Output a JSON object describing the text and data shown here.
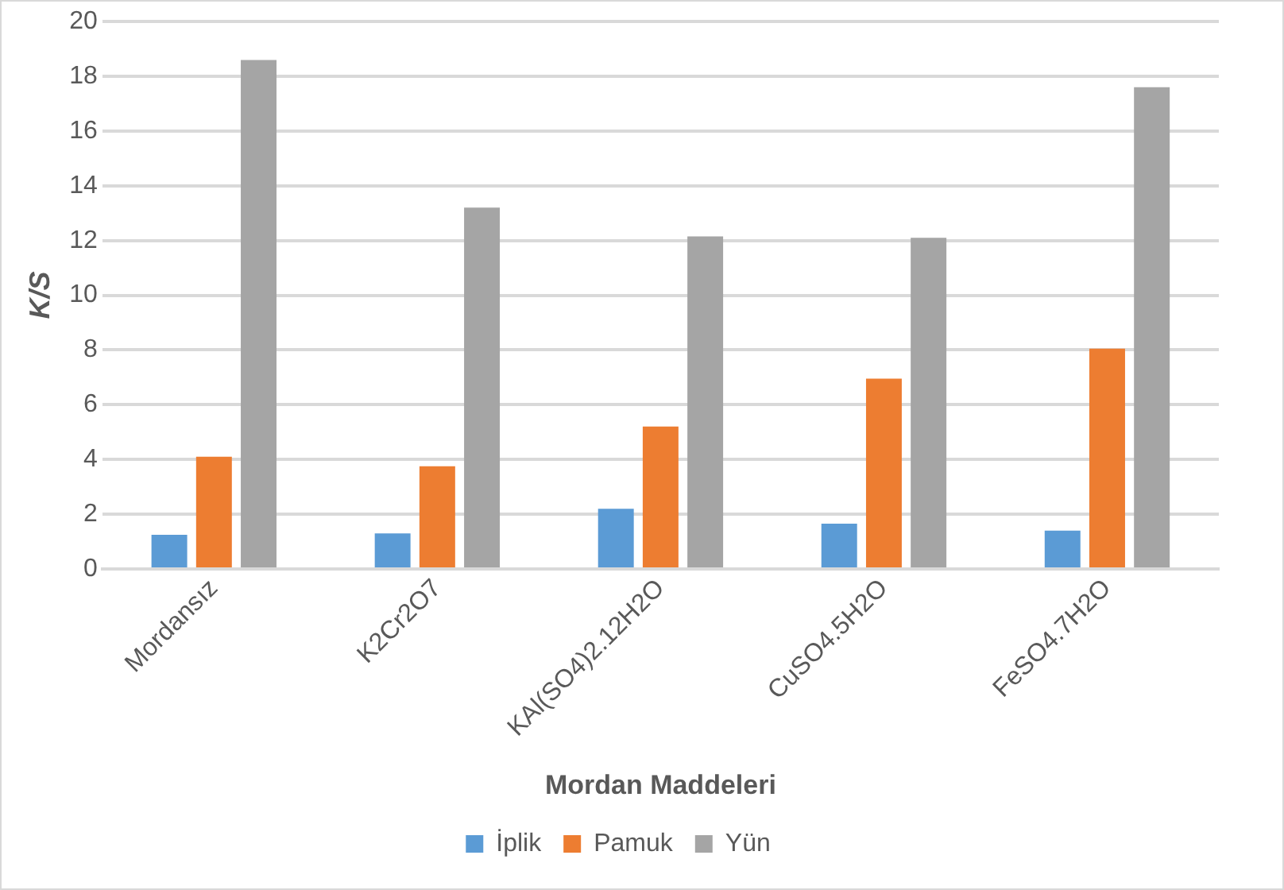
{
  "chart_data": {
    "type": "bar",
    "xlabel": "Mordan Maddeleri",
    "ylabel": "K/S",
    "categories": [
      "Mordansız",
      "K2Cr2O7",
      "KAl(SO4)2.12H2O",
      "CuSO4.5H2O",
      "FeSO4.7H2O"
    ],
    "series": [
      {
        "name": "İplik",
        "color": "#5b9bd5",
        "values": [
          1.25,
          1.3,
          2.2,
          1.65,
          1.4
        ]
      },
      {
        "name": "Pamuk",
        "color": "#ed7d31",
        "values": [
          4.1,
          3.75,
          5.2,
          6.95,
          8.05
        ]
      },
      {
        "name": "Yün",
        "color": "#a5a5a5",
        "values": [
          18.6,
          13.2,
          12.15,
          12.1,
          17.6
        ]
      }
    ],
    "ylim": [
      0,
      20
    ],
    "yticks": [
      0,
      2,
      4,
      6,
      8,
      10,
      12,
      14,
      16,
      18,
      20
    ],
    "grid": "y",
    "legend": "bottom"
  }
}
